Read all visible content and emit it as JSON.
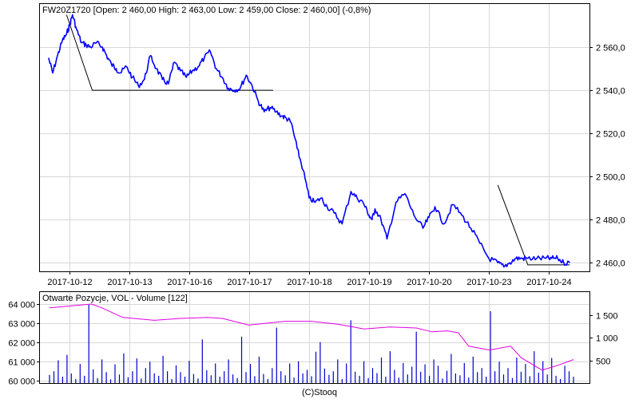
{
  "chart_data": [
    {
      "type": "line",
      "title": "FW20Z1720 [Open: 2 460,00  High: 2 463,00  Low: 2 459,00  Close: 2 460,00] (-0,8%)",
      "categories": [
        "2017-10-12",
        "2017-10-13",
        "2017-10-16",
        "2017-10-17",
        "2017-10-18",
        "2017-10-19",
        "2017-10-20",
        "2017-10-23",
        "2017-10-24"
      ],
      "ylim": [
        2456,
        2580
      ],
      "y_ticks": [
        2460,
        2480,
        2500,
        2520,
        2540,
        2560
      ],
      "y_tick_labels": [
        "2 460,0",
        "2 480,0",
        "2 500,0",
        "2 520,0",
        "2 540,0",
        "2 560,0"
      ],
      "grid": true,
      "series": [
        {
          "color": "#0000ff",
          "x": [
            -0.35,
            -0.28,
            -0.2,
            -0.12,
            -0.05,
            0.0,
            0.05,
            0.12,
            0.2,
            0.28,
            0.35,
            0.45,
            0.55,
            0.62,
            0.7,
            0.78,
            0.85,
            0.95,
            1.05,
            1.15,
            1.25,
            1.35,
            1.45,
            1.55,
            1.65,
            1.75,
            1.85,
            1.95,
            2.05,
            2.15,
            2.25,
            2.35,
            2.45,
            2.55,
            2.65,
            2.75,
            2.85,
            2.95,
            3.05,
            3.15,
            3.25,
            3.35,
            3.45,
            3.55,
            3.62,
            3.7,
            3.8,
            3.9,
            4.0,
            4.1,
            4.2,
            4.3,
            4.42,
            4.55,
            4.7,
            4.8,
            4.9,
            5.0,
            5.05,
            5.1,
            5.2,
            5.3,
            5.45,
            5.6,
            5.75,
            5.9,
            6.0,
            6.1,
            6.25,
            6.4,
            6.55,
            6.7,
            6.85,
            7.0,
            7.15,
            7.25,
            7.35,
            7.45,
            7.55,
            7.65,
            7.8,
            7.95,
            8.05,
            8.15,
            8.25,
            8.35
          ],
          "values": [
            2555,
            2548,
            2556,
            2563,
            2566,
            2570,
            2575,
            2568,
            2562,
            2561,
            2560,
            2562,
            2560,
            2556,
            2552,
            2550,
            2548,
            2551,
            2546,
            2542,
            2545,
            2556,
            2550,
            2545,
            2543,
            2553,
            2549,
            2546,
            2549,
            2551,
            2555,
            2558,
            2550,
            2546,
            2541,
            2540,
            2541,
            2547,
            2542,
            2535,
            2530,
            2532,
            2530,
            2528,
            2527,
            2525,
            2513,
            2503,
            2490,
            2488,
            2490,
            2486,
            2483,
            2478,
            2493,
            2490,
            2488,
            2482,
            2480,
            2485,
            2480,
            2471,
            2488,
            2492,
            2482,
            2476,
            2481,
            2486,
            2478,
            2487,
            2482,
            2476,
            2469,
            2462,
            2460,
            2458,
            2460,
            2462,
            2462,
            2462,
            2462,
            2462,
            2462,
            2462,
            2460,
            2460
          ]
        }
      ],
      "annotations": [
        "trendline",
        "trendline"
      ]
    },
    {
      "type": "bar",
      "title": "Otwarte Pozycje, VOL - Volume [122]",
      "ylim_left": [
        60000,
        64000
      ],
      "y_ticks_left": [
        60000,
        61000,
        62000,
        63000,
        64000
      ],
      "y_tick_labels_left": [
        "60 000",
        "61 000",
        "62 000",
        "63 000",
        "64 000"
      ],
      "ylim_right": [
        0,
        2000
      ],
      "y_ticks_right": [
        500,
        1000,
        1500
      ],
      "y_tick_labels_right": [
        "500",
        "1 000",
        "1 500"
      ],
      "series": [
        {
          "type": "bar",
          "color": "#0000cc",
          "values": [
            180,
            260,
            500,
            140,
            620,
            210,
            90,
            420,
            160,
            1720,
            300,
            110,
            520,
            240,
            80,
            410,
            190,
            650,
            130,
            260,
            540,
            100,
            330,
            470,
            210,
            160,
            600,
            260,
            90,
            390,
            240,
            140,
            490,
            200,
            100,
            960,
            280,
            170,
            430,
            140,
            260,
            520,
            190,
            110,
            1020,
            240,
            420,
            150,
            580,
            200,
            90,
            330,
            1220,
            260,
            170,
            430,
            120,
            480,
            210,
            290,
            150,
            690,
            900,
            320,
            180,
            260,
            520,
            90,
            430,
            1380,
            250,
            160,
            480,
            110,
            330,
            220,
            560,
            140,
            700,
            290,
            120,
            440,
            190,
            360,
            1130,
            250,
            410,
            160,
            520,
            380,
            100,
            270,
            640,
            210,
            170,
            440,
            120,
            580,
            240,
            330,
            140,
            1580,
            260,
            470,
            190,
            330,
            110,
            560,
            250,
            420,
            150,
            700,
            230,
            480,
            190,
            550,
            160,
            90,
            380,
            260,
            140
          ]
        },
        {
          "type": "line",
          "color": "#e000e0",
          "x": [
            0,
            0.04,
            0.08,
            0.1,
            0.14,
            0.2,
            0.25,
            0.3,
            0.33,
            0.38,
            0.45,
            0.5,
            0.55,
            0.58,
            0.6,
            0.65,
            0.7,
            0.73,
            0.76,
            0.78,
            0.8,
            0.84,
            0.88,
            0.9,
            0.94,
            0.97,
            1.0
          ],
          "values": [
            63800,
            63900,
            64000,
            63800,
            63300,
            63150,
            63250,
            63300,
            63250,
            62900,
            63100,
            63100,
            62950,
            62800,
            62700,
            62800,
            62750,
            62550,
            62600,
            62500,
            61800,
            61600,
            61800,
            61200,
            60550,
            60800,
            61100
          ]
        }
      ]
    }
  ],
  "footer": "(C)Stooq"
}
